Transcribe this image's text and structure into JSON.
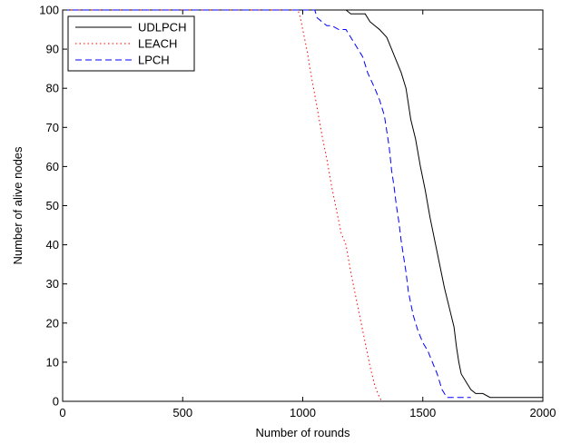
{
  "chart_data": {
    "type": "line",
    "title": "",
    "xlabel": "Number of rounds",
    "ylabel": "Number of alive nodes",
    "xlim": [
      0,
      2000
    ],
    "ylim": [
      0,
      100
    ],
    "xticks": [
      0,
      500,
      1000,
      1500,
      2000
    ],
    "yticks": [
      0,
      10,
      20,
      30,
      40,
      50,
      60,
      70,
      80,
      90,
      100
    ],
    "grid": false,
    "legend": "top-left",
    "series": [
      {
        "name": "UDLPCH",
        "color": "#000000",
        "style": "solid",
        "x": [
          0,
          1180,
          1200,
          1260,
          1270,
          1280,
          1300,
          1320,
          1350,
          1370,
          1390,
          1410,
          1430,
          1440,
          1450,
          1470,
          1490,
          1510,
          1530,
          1550,
          1570,
          1590,
          1610,
          1630,
          1640,
          1650,
          1660,
          1680,
          1700,
          1720,
          1750,
          1780,
          1800,
          2000
        ],
        "y": [
          100,
          100,
          99,
          99,
          98,
          97,
          96,
          95,
          93,
          90,
          87,
          84,
          80,
          76,
          72,
          67,
          60,
          54,
          47,
          41,
          35,
          29,
          24,
          19,
          14,
          10,
          7,
          5,
          3,
          2,
          2,
          1,
          1,
          1
        ]
      },
      {
        "name": "LEACH",
        "color": "#ff0000",
        "style": "dotted",
        "x": [
          0,
          980,
          990,
          1000,
          1010,
          1020,
          1030,
          1045,
          1060,
          1080,
          1100,
          1120,
          1140,
          1160,
          1180,
          1200,
          1220,
          1240,
          1260,
          1280,
          1300,
          1320,
          1330
        ],
        "y": [
          100,
          100,
          98,
          95,
          92,
          89,
          85,
          80,
          75,
          68,
          62,
          55,
          49,
          43,
          40,
          33,
          27,
          21,
          15,
          9,
          4,
          1,
          0
        ]
      },
      {
        "name": "LPCH",
        "color": "#0000ff",
        "style": "dashed",
        "x": [
          0,
          1050,
          1060,
          1080,
          1100,
          1120,
          1150,
          1180,
          1200,
          1220,
          1250,
          1270,
          1300,
          1320,
          1340,
          1350,
          1360,
          1370,
          1380,
          1390,
          1400,
          1410,
          1420,
          1430,
          1440,
          1450,
          1460,
          1480,
          1500,
          1520,
          1540,
          1560,
          1580,
          1600,
          1700
        ],
        "y": [
          100,
          100,
          98,
          97,
          96,
          96,
          95,
          95,
          93,
          91,
          88,
          84,
          80,
          77,
          73,
          69,
          65,
          59,
          55,
          50,
          46,
          41,
          37,
          33,
          28,
          25,
          22,
          18,
          15,
          13,
          10,
          7,
          3,
          1,
          1
        ]
      }
    ]
  }
}
